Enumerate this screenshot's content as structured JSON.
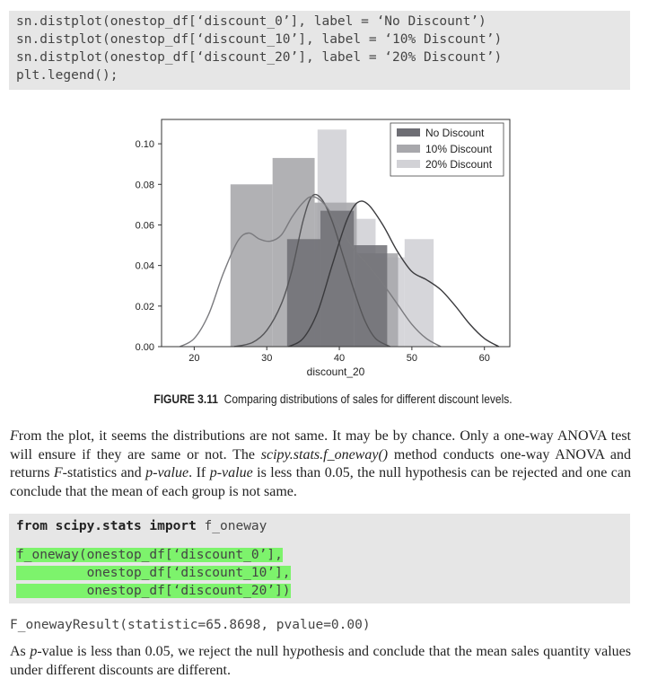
{
  "code_block_1": {
    "lines": [
      "sn.distplot(onestop_df[‘discount_0’], label = ‘No Discount’)",
      "sn.distplot(onestop_df[‘discount_10’], label = ‘10% Discount’)",
      "sn.distplot(onestop_df[‘discount_20’], label = ‘20% Discount’)",
      "plt.legend();"
    ]
  },
  "chart_data": {
    "type": "histogram",
    "xlabel": "discount_20",
    "ylabel": "",
    "xlim": [
      15.5,
      63.5
    ],
    "ylim": [
      0,
      0.112
    ],
    "x_ticks": [
      "20",
      "30",
      "40",
      "50",
      "60"
    ],
    "y_ticks": [
      "0.00",
      "0.02",
      "0.04",
      "0.06",
      "0.08",
      "0.10"
    ],
    "legend_position": "top-right",
    "grid": false,
    "series": [
      {
        "name": "No Discount",
        "color": "#6e6e74",
        "bins": [
          [
            32.8,
            37.4,
            0.053
          ],
          [
            37.4,
            42.0,
            0.067
          ],
          [
            42.0,
            46.6,
            0.05
          ]
        ],
        "kde": [
          [
            25.5,
            0.0
          ],
          [
            28,
            0.002
          ],
          [
            30,
            0.008
          ],
          [
            32,
            0.021
          ],
          [
            33.5,
            0.038
          ],
          [
            35,
            0.062
          ],
          [
            36.2,
            0.074
          ],
          [
            37.5,
            0.073
          ],
          [
            39,
            0.062
          ],
          [
            40.5,
            0.045
          ],
          [
            42,
            0.028
          ],
          [
            43.5,
            0.013
          ],
          [
            45,
            0.004
          ],
          [
            47,
            0.0
          ]
        ]
      },
      {
        "name": "10% Discount",
        "color": "#a8a8ac",
        "bins": [
          [
            25.0,
            30.8,
            0.08
          ],
          [
            30.8,
            36.6,
            0.093
          ],
          [
            36.6,
            42.4,
            0.071
          ],
          [
            42.4,
            48.1,
            0.046
          ]
        ],
        "kde": [
          [
            18,
            0.0
          ],
          [
            20,
            0.004
          ],
          [
            22,
            0.016
          ],
          [
            24,
            0.036
          ],
          [
            26,
            0.052
          ],
          [
            27.5,
            0.056
          ],
          [
            29,
            0.053
          ],
          [
            30.5,
            0.052
          ],
          [
            32,
            0.055
          ],
          [
            33.5,
            0.064
          ],
          [
            35,
            0.071
          ],
          [
            36.3,
            0.074
          ],
          [
            38,
            0.07
          ],
          [
            40,
            0.059
          ],
          [
            42,
            0.048
          ],
          [
            44,
            0.04
          ],
          [
            46,
            0.031
          ],
          [
            48,
            0.021
          ],
          [
            50,
            0.011
          ],
          [
            52,
            0.004
          ],
          [
            54,
            0.0
          ]
        ]
      },
      {
        "name": "20% Discount",
        "color": "#d2d2d6",
        "bins": [
          [
            33.0,
            37.0,
            0.048
          ],
          [
            37.0,
            41.0,
            0.107
          ],
          [
            41.0,
            45.0,
            0.063
          ],
          [
            45.0,
            49.0,
            0.044
          ],
          [
            49.0,
            53.0,
            0.053
          ]
        ],
        "kde": [
          [
            33,
            0.0
          ],
          [
            35,
            0.004
          ],
          [
            37,
            0.017
          ],
          [
            39,
            0.04
          ],
          [
            41,
            0.062
          ],
          [
            42.5,
            0.071
          ],
          [
            44,
            0.07
          ],
          [
            46,
            0.06
          ],
          [
            48,
            0.047
          ],
          [
            50,
            0.037
          ],
          [
            52,
            0.033
          ],
          [
            54,
            0.028
          ],
          [
            56,
            0.02
          ],
          [
            58,
            0.011
          ],
          [
            60,
            0.004
          ],
          [
            62,
            0.0
          ]
        ]
      }
    ]
  },
  "figure_caption": {
    "label": "FIGURE 3.11",
    "text": "Comparing distributions of sales for different discount levels."
  },
  "paragraph_1": "From the plot, it seems the distributions are not same. It may be by chance. Only a one-way ANOVA test will ensure if they are same or not. The scipy.stats.f_oneway() method conducts one-way ANOVA and returns F-statistics and p-value. If p-value is less than 0.05, the null hypothesis can be rejected and one can conclude that the mean of each group is not same.",
  "code_block_2": {
    "keyword_from": "from",
    "module": "scipy.stats",
    "keyword_import": "import",
    "imported": "f_oneway",
    "call_lines": [
      "f_oneway(onestop_df[‘discount_0’],",
      "         onestop_df[‘discount_10’],",
      "         onestop_df[‘discount_20’])"
    ]
  },
  "output_line": "F_onewayResult(statistic=65.8698, pvalue=0.00)",
  "paragraph_2": "As p-value is less than 0.05, we reject the null hypothesis and conclude that the mean sales quantity values under different discounts are different.",
  "highlight_color": "#7df36c"
}
